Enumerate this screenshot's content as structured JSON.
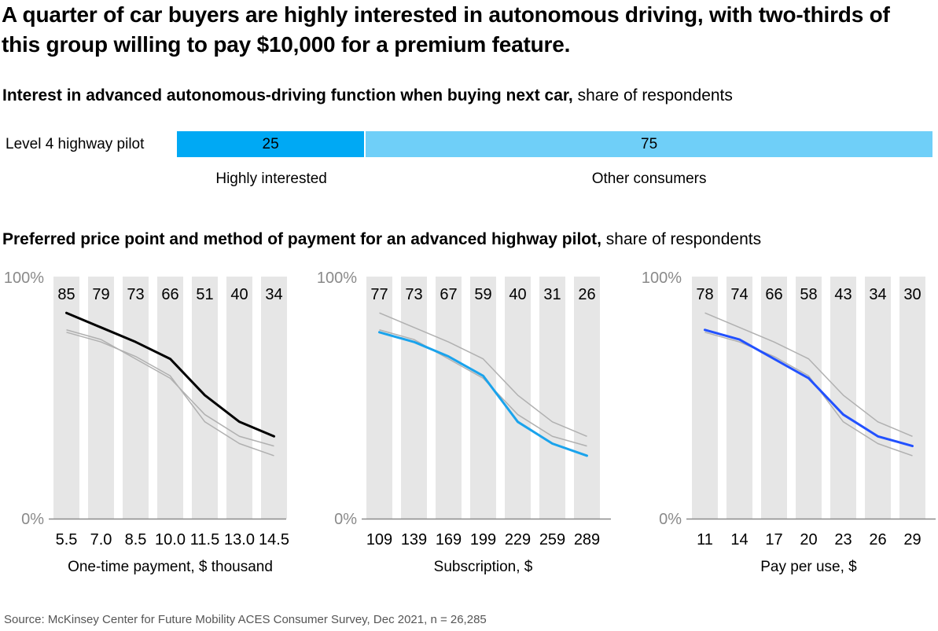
{
  "title": "A quarter of car buyers are highly interested in autonomous driving, with two-thirds of this group willing to pay $10,000 for a premium feature.",
  "section1": {
    "heading_bold": "Interest in advanced autonomous-driving function when buying next car,",
    "heading_light": " share of respondents",
    "row_label": "Level 4 highway pilot",
    "segments": [
      {
        "label": "Highly interested",
        "value": 25,
        "color": "#00A9F4"
      },
      {
        "label": "Other consumers",
        "value": 75,
        "color": "#6FCFF8"
      }
    ]
  },
  "section2": {
    "heading_bold": "Preferred price point and method of payment for an advanced highway pilot,",
    "heading_light": " share of respondents"
  },
  "source": "Source: McKinsey Center for Future Mobility ACES Consumer Survey, Dec 2021, n = 26,285",
  "chart_data": [
    {
      "type": "bar",
      "title": "Interest in advanced autonomous-driving function when buying next car, share of respondents",
      "orientation": "horizontal-stacked",
      "categories": [
        "Level 4 highway pilot"
      ],
      "series": [
        {
          "name": "Highly interested",
          "values": [
            25
          ]
        },
        {
          "name": "Other consumers",
          "values": [
            75
          ]
        }
      ],
      "unit": "%"
    },
    {
      "type": "line",
      "title": "Preferred price point and method of payment for an advanced highway pilot, share of respondents",
      "xlabel": "One-time payment, $ thousand",
      "ylabel": "",
      "ylim": [
        0,
        100
      ],
      "yticks": [
        "0%",
        "100%"
      ],
      "categories": [
        "5.5",
        "7.0",
        "8.5",
        "10.0",
        "11.5",
        "13.0",
        "14.5"
      ],
      "highlight_color": "#000000",
      "series": [
        {
          "name": "One-time payment",
          "highlight": true,
          "values": [
            85,
            79,
            73,
            66,
            51,
            40,
            34
          ]
        },
        {
          "name": "Subscription",
          "highlight": false,
          "values": [
            77,
            73,
            67,
            59,
            40,
            31,
            26
          ]
        },
        {
          "name": "Pay per use",
          "highlight": false,
          "values": [
            78,
            74,
            66,
            58,
            43,
            34,
            30
          ]
        }
      ]
    },
    {
      "type": "line",
      "xlabel": "Subscription, $",
      "ylim": [
        0,
        100
      ],
      "yticks": [
        "0%",
        "100%"
      ],
      "categories": [
        "109",
        "139",
        "169",
        "199",
        "229",
        "259",
        "289"
      ],
      "highlight_color": "#1AA3EC",
      "series": [
        {
          "name": "Subscription",
          "highlight": true,
          "values": [
            77,
            73,
            67,
            59,
            40,
            31,
            26
          ]
        },
        {
          "name": "One-time payment",
          "highlight": false,
          "values": [
            85,
            79,
            73,
            66,
            51,
            40,
            34
          ]
        },
        {
          "name": "Pay per use",
          "highlight": false,
          "values": [
            78,
            74,
            66,
            58,
            43,
            34,
            30
          ]
        }
      ]
    },
    {
      "type": "line",
      "xlabel": "Pay per use, $",
      "ylim": [
        0,
        100
      ],
      "yticks": [
        "0%",
        "100%"
      ],
      "categories": [
        "11",
        "14",
        "17",
        "20",
        "23",
        "26",
        "29"
      ],
      "highlight_color": "#2251FF",
      "series": [
        {
          "name": "Pay per use",
          "highlight": true,
          "values": [
            78,
            74,
            66,
            58,
            43,
            34,
            30
          ]
        },
        {
          "name": "One-time payment",
          "highlight": false,
          "values": [
            85,
            79,
            73,
            66,
            51,
            40,
            34
          ]
        },
        {
          "name": "Subscription",
          "highlight": false,
          "values": [
            77,
            73,
            67,
            59,
            40,
            31,
            26
          ]
        }
      ]
    }
  ]
}
